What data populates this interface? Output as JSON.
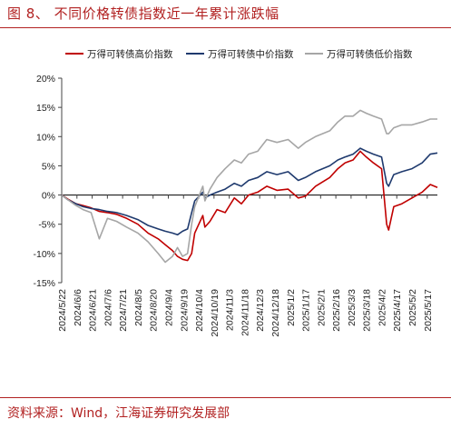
{
  "header": {
    "title": "图 8、 不同价格转债指数近一年累计涨跌幅"
  },
  "footer": {
    "source": "资料来源：Wind，江海证券研究发展部"
  },
  "chart_data": {
    "type": "line",
    "title": "图 8、 不同价格转债指数近一年累计涨跌幅",
    "xlabel": "",
    "ylabel": "",
    "ylim": [
      -15,
      20
    ],
    "yticks": [
      20,
      15,
      10,
      5,
      0,
      -5,
      -10,
      -15
    ],
    "ytick_labels": [
      "20%",
      "15%",
      "10%",
      "5%",
      "0%",
      "-5%",
      "-10%",
      "-15%"
    ],
    "x_start": "2024-05-22",
    "x_end": "2025-05-27",
    "xticks": [
      "2024/5/22",
      "2024/6/6",
      "2024/6/21",
      "2024/7/6",
      "2024/7/21",
      "2024/8/5",
      "2024/8/20",
      "2024/9/4",
      "2024/9/19",
      "2024/10/4",
      "2024/10/19",
      "2024/11/3",
      "2024/11/18",
      "2024/12/3",
      "2024/12/18",
      "2025/1/2",
      "2025/1/17",
      "2025/2/1",
      "2025/2/16",
      "2025/3/3",
      "2025/3/18",
      "2025/4/2",
      "2025/4/17",
      "2025/5/2",
      "2025/5/17"
    ],
    "legend_position": "top",
    "grid": false,
    "series": [
      {
        "name": "万得可转债高价指数",
        "color": "#c00000",
        "points": [
          [
            "2024-05-22",
            0
          ],
          [
            "2024-05-28",
            -0.7
          ],
          [
            "2024-06-05",
            -1.5
          ],
          [
            "2024-06-12",
            -1.8
          ],
          [
            "2024-06-20",
            -2.2
          ],
          [
            "2024-06-28",
            -2.8
          ],
          [
            "2024-07-06",
            -3.0
          ],
          [
            "2024-07-15",
            -3.3
          ],
          [
            "2024-07-25",
            -4.0
          ],
          [
            "2024-08-05",
            -5.0
          ],
          [
            "2024-08-15",
            -6.5
          ],
          [
            "2024-08-25",
            -7.5
          ],
          [
            "2024-09-01",
            -8.5
          ],
          [
            "2024-09-08",
            -9.5
          ],
          [
            "2024-09-13",
            -10.5
          ],
          [
            "2024-09-18",
            -11.0
          ],
          [
            "2024-09-23",
            -11.2
          ],
          [
            "2024-09-27",
            -10.0
          ],
          [
            "2024-09-30",
            -6.5
          ],
          [
            "2024-10-08",
            -3.5
          ],
          [
            "2024-10-10",
            -5.5
          ],
          [
            "2024-10-15",
            -4.5
          ],
          [
            "2024-10-22",
            -2.5
          ],
          [
            "2024-10-30",
            -3.0
          ],
          [
            "2024-11-08",
            -0.5
          ],
          [
            "2024-11-15",
            -1.5
          ],
          [
            "2024-11-22",
            0.0
          ],
          [
            "2024-12-01",
            0.5
          ],
          [
            "2024-12-10",
            1.5
          ],
          [
            "2024-12-20",
            0.8
          ],
          [
            "2024-12-31",
            1.0
          ],
          [
            "2025-01-10",
            -0.5
          ],
          [
            "2025-01-17",
            -0.2
          ],
          [
            "2025-01-27",
            1.5
          ],
          [
            "2025-02-10",
            3.0
          ],
          [
            "2025-02-18",
            4.5
          ],
          [
            "2025-02-25",
            5.5
          ],
          [
            "2025-03-05",
            6.0
          ],
          [
            "2025-03-12",
            7.5
          ],
          [
            "2025-03-18",
            6.5
          ],
          [
            "2025-03-25",
            5.5
          ],
          [
            "2025-04-02",
            4.5
          ],
          [
            "2025-04-07",
            -5.0
          ],
          [
            "2025-04-09",
            -6.0
          ],
          [
            "2025-04-14",
            -2.0
          ],
          [
            "2025-04-22",
            -1.5
          ],
          [
            "2025-05-02",
            -0.5
          ],
          [
            "2025-05-12",
            0.5
          ],
          [
            "2025-05-20",
            1.8
          ],
          [
            "2025-05-27",
            1.3
          ]
        ]
      },
      {
        "name": "万得可转债中价指数",
        "color": "#1f3a6e",
        "points": [
          [
            "2024-05-22",
            0
          ],
          [
            "2024-05-28",
            -0.8
          ],
          [
            "2024-06-05",
            -1.5
          ],
          [
            "2024-06-12",
            -2.0
          ],
          [
            "2024-06-20",
            -2.3
          ],
          [
            "2024-06-28",
            -2.5
          ],
          [
            "2024-07-06",
            -2.8
          ],
          [
            "2024-07-15",
            -3.0
          ],
          [
            "2024-07-25",
            -3.5
          ],
          [
            "2024-08-05",
            -4.2
          ],
          [
            "2024-08-15",
            -5.2
          ],
          [
            "2024-08-25",
            -5.8
          ],
          [
            "2024-09-01",
            -6.2
          ],
          [
            "2024-09-08",
            -6.5
          ],
          [
            "2024-09-13",
            -6.8
          ],
          [
            "2024-09-18",
            -6.2
          ],
          [
            "2024-09-23",
            -5.8
          ],
          [
            "2024-09-27",
            -3.0
          ],
          [
            "2024-09-30",
            -1.0
          ],
          [
            "2024-10-08",
            0.5
          ],
          [
            "2024-10-10",
            -0.5
          ],
          [
            "2024-10-15",
            0.0
          ],
          [
            "2024-10-22",
            0.5
          ],
          [
            "2024-10-30",
            1.0
          ],
          [
            "2024-11-08",
            2.0
          ],
          [
            "2024-11-15",
            1.5
          ],
          [
            "2024-11-22",
            2.5
          ],
          [
            "2024-12-01",
            3.0
          ],
          [
            "2024-12-10",
            4.0
          ],
          [
            "2024-12-20",
            3.5
          ],
          [
            "2024-12-31",
            4.0
          ],
          [
            "2025-01-10",
            2.5
          ],
          [
            "2025-01-17",
            3.0
          ],
          [
            "2025-01-27",
            4.0
          ],
          [
            "2025-02-10",
            5.0
          ],
          [
            "2025-02-18",
            6.0
          ],
          [
            "2025-02-25",
            6.5
          ],
          [
            "2025-03-05",
            7.0
          ],
          [
            "2025-03-12",
            8.0
          ],
          [
            "2025-03-18",
            7.5
          ],
          [
            "2025-03-25",
            7.0
          ],
          [
            "2025-04-02",
            6.5
          ],
          [
            "2025-04-07",
            2.0
          ],
          [
            "2025-04-09",
            1.5
          ],
          [
            "2025-04-14",
            3.5
          ],
          [
            "2025-04-22",
            4.0
          ],
          [
            "2025-05-02",
            4.5
          ],
          [
            "2025-05-12",
            5.5
          ],
          [
            "2025-05-20",
            7.0
          ],
          [
            "2025-05-27",
            7.2
          ]
        ]
      },
      {
        "name": "万得可转债低价指数",
        "color": "#a6a6a6",
        "points": [
          [
            "2024-05-22",
            0
          ],
          [
            "2024-05-28",
            -0.8
          ],
          [
            "2024-06-05",
            -1.8
          ],
          [
            "2024-06-12",
            -2.5
          ],
          [
            "2024-06-20",
            -3.0
          ],
          [
            "2024-06-28",
            -7.5
          ],
          [
            "2024-07-06",
            -4.0
          ],
          [
            "2024-07-15",
            -4.5
          ],
          [
            "2024-07-25",
            -5.5
          ],
          [
            "2024-08-05",
            -6.5
          ],
          [
            "2024-08-15",
            -8.0
          ],
          [
            "2024-08-25",
            -10.0
          ],
          [
            "2024-09-01",
            -11.5
          ],
          [
            "2024-09-08",
            -10.5
          ],
          [
            "2024-09-13",
            -9.0
          ],
          [
            "2024-09-18",
            -10.5
          ],
          [
            "2024-09-23",
            -10.0
          ],
          [
            "2024-09-27",
            -5.0
          ],
          [
            "2024-09-30",
            -2.0
          ],
          [
            "2024-10-08",
            1.5
          ],
          [
            "2024-10-10",
            -1.0
          ],
          [
            "2024-10-15",
            1.0
          ],
          [
            "2024-10-22",
            3.0
          ],
          [
            "2024-10-30",
            4.5
          ],
          [
            "2024-11-08",
            6.0
          ],
          [
            "2024-11-15",
            5.5
          ],
          [
            "2024-11-22",
            7.0
          ],
          [
            "2024-12-01",
            7.5
          ],
          [
            "2024-12-10",
            9.5
          ],
          [
            "2024-12-20",
            9.0
          ],
          [
            "2024-12-31",
            9.5
          ],
          [
            "2025-01-10",
            8.0
          ],
          [
            "2025-01-17",
            9.0
          ],
          [
            "2025-01-27",
            10.0
          ],
          [
            "2025-02-10",
            11.0
          ],
          [
            "2025-02-18",
            12.5
          ],
          [
            "2025-02-25",
            13.5
          ],
          [
            "2025-03-05",
            13.5
          ],
          [
            "2025-03-12",
            14.5
          ],
          [
            "2025-03-18",
            14.0
          ],
          [
            "2025-03-25",
            13.5
          ],
          [
            "2025-04-02",
            13.0
          ],
          [
            "2025-04-07",
            10.5
          ],
          [
            "2025-04-09",
            10.5
          ],
          [
            "2025-04-14",
            11.5
          ],
          [
            "2025-04-22",
            12.0
          ],
          [
            "2025-05-02",
            12.0
          ],
          [
            "2025-05-12",
            12.5
          ],
          [
            "2025-05-20",
            13.0
          ],
          [
            "2025-05-27",
            13.0
          ]
        ]
      }
    ]
  }
}
